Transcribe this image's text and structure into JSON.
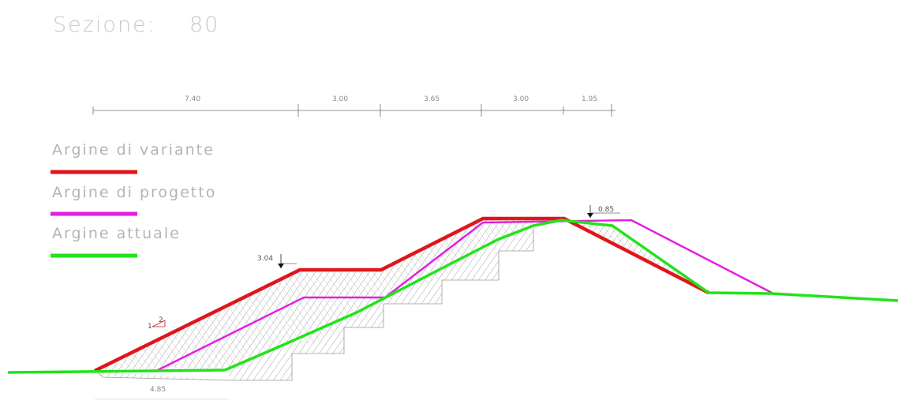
{
  "title": {
    "label": "Sezione:",
    "number": "80"
  },
  "dimensions": {
    "segments": [
      "7.40",
      "3.00",
      "3.65",
      "3.00",
      "1.95"
    ],
    "bottom": "4.85"
  },
  "legend": [
    {
      "label": "Argine di variante",
      "color": "#e0161b"
    },
    {
      "label": "Argine di progetto",
      "color": "#e21ee0"
    },
    {
      "label": "Argine attuale",
      "color": "#22e31a"
    }
  ],
  "annotations": {
    "berm_level": "3.04",
    "crest_level": "0.85",
    "slope_ratio": "2"
  },
  "colors": {
    "hatch": "#8c8c8c",
    "dimension_line": "#6f6f6f"
  }
}
